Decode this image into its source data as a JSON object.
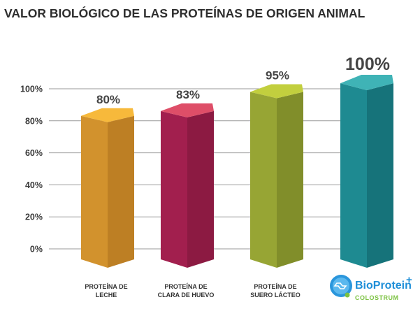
{
  "chart_data": {
    "type": "bar",
    "title": "VALOR BIOLÓGICO DE LAS PROTEÍNAS DE ORIGEN ANIMAL",
    "categories": [
      [
        "PROTEÍNA DE",
        "LECHE"
      ],
      [
        "PROTEÍNA DE",
        "CLARA DE HUEVO"
      ],
      [
        "PROTEÍNA DE",
        "SUERO LÁCTEO"
      ],
      [
        "",
        ""
      ]
    ],
    "values": [
      80,
      83,
      95,
      100
    ],
    "data_labels": [
      "80%",
      "83%",
      "95%",
      "100%"
    ],
    "yticks": [
      "0%",
      "20%",
      "40%",
      "60%",
      "80%",
      "100%"
    ],
    "ylim": [
      0,
      100
    ],
    "grid": true,
    "xlabel": "",
    "ylabel": "",
    "colors": [
      {
        "front": "#d2922d",
        "side": "#bd7f24",
        "top": "#f7b93b"
      },
      {
        "front": "#a21f4e",
        "side": "#8c1a42",
        "top": "#de4e68"
      },
      {
        "front": "#97a534",
        "side": "#818e2a",
        "top": "#c2cf3e"
      },
      {
        "front": "#1e8a91",
        "side": "#16737a",
        "top": "#3fb3b6"
      }
    ]
  },
  "logo": {
    "brand": "BioProtein",
    "plus": "+",
    "sub": "COLOSTRUM",
    "color": "#1f8fd8",
    "sub_color": "#7cc242"
  }
}
